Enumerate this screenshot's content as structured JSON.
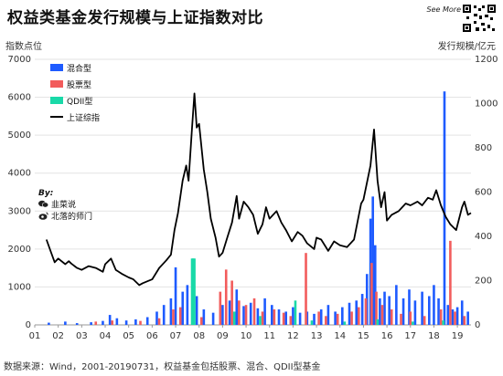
{
  "title": "权益类基金发行规模与上证指数对比",
  "left_axis_unit": "指数点位",
  "right_axis_unit": "发行规模/亿元",
  "source_note": "数据来源：Wind，2001-20190731，权益基金包括股票、混合、QDII型基金",
  "see_more": "See More",
  "byline": {
    "by": "By:",
    "wechat_name": "韭菜说",
    "weibo_name": "北落的师门"
  },
  "colors": {
    "hybrid": "#1e5bff",
    "stock": "#f25c5c",
    "qdii": "#19d9a8",
    "index": "#000000"
  },
  "chart_data": {
    "type": "bar",
    "title": "权益类基金发行规模与上证指数对比",
    "ylabel_left": "指数点位",
    "ylabel_right": "发行规模/亿元",
    "ylim_left": [
      0,
      7000
    ],
    "ylim_right": [
      0,
      1200
    ],
    "y_ticks_left": [
      "0",
      "1000",
      "2000",
      "3000",
      "4000",
      "5000",
      "6000",
      "7000"
    ],
    "y_ticks_right": [
      "0",
      "200",
      "400",
      "600",
      "800",
      "1000",
      "1200"
    ],
    "x_ticks": [
      "01",
      "02",
      "03",
      "04",
      "05",
      "06",
      "07",
      "08",
      "09",
      "10",
      "11",
      "12",
      "13",
      "14",
      "15",
      "16",
      "17",
      "18",
      "19"
    ],
    "x_range": [
      2001.0,
      2019.58
    ],
    "legend": [
      "混合型",
      "股票型",
      "QDII型",
      "上证综指"
    ],
    "legend_position": "top-left",
    "grid": "horizontal",
    "series": [
      {
        "name": "上证综指",
        "kind": "line",
        "axis": "left",
        "points": [
          [
            2001.5,
            2250
          ],
          [
            2001.7,
            1900
          ],
          [
            2001.85,
            1650
          ],
          [
            2002.0,
            1750
          ],
          [
            2002.3,
            1600
          ],
          [
            2002.45,
            1680
          ],
          [
            2002.55,
            1620
          ],
          [
            2002.8,
            1500
          ],
          [
            2003.0,
            1450
          ],
          [
            2003.3,
            1550
          ],
          [
            2003.6,
            1500
          ],
          [
            2003.9,
            1400
          ],
          [
            2004.0,
            1600
          ],
          [
            2004.25,
            1750
          ],
          [
            2004.45,
            1450
          ],
          [
            2004.7,
            1350
          ],
          [
            2005.0,
            1250
          ],
          [
            2005.2,
            1200
          ],
          [
            2005.45,
            1050
          ],
          [
            2005.6,
            1100
          ],
          [
            2005.8,
            1150
          ],
          [
            2006.0,
            1200
          ],
          [
            2006.3,
            1500
          ],
          [
            2006.6,
            1700
          ],
          [
            2006.8,
            1850
          ],
          [
            2006.95,
            2500
          ],
          [
            2007.1,
            2950
          ],
          [
            2007.3,
            3800
          ],
          [
            2007.45,
            4200
          ],
          [
            2007.55,
            3800
          ],
          [
            2007.7,
            5200
          ],
          [
            2007.8,
            6100
          ],
          [
            2007.9,
            5200
          ],
          [
            2008.0,
            5300
          ],
          [
            2008.2,
            4100
          ],
          [
            2008.35,
            3500
          ],
          [
            2008.5,
            2800
          ],
          [
            2008.7,
            2300
          ],
          [
            2008.85,
            1800
          ],
          [
            2009.0,
            1900
          ],
          [
            2009.2,
            2300
          ],
          [
            2009.4,
            2700
          ],
          [
            2009.6,
            3400
          ],
          [
            2009.7,
            2800
          ],
          [
            2009.9,
            3250
          ],
          [
            2010.1,
            3100
          ],
          [
            2010.3,
            2900
          ],
          [
            2010.5,
            2400
          ],
          [
            2010.7,
            2650
          ],
          [
            2010.85,
            3100
          ],
          [
            2011.0,
            2800
          ],
          [
            2011.3,
            3000
          ],
          [
            2011.5,
            2700
          ],
          [
            2011.7,
            2500
          ],
          [
            2011.95,
            2200
          ],
          [
            2012.2,
            2450
          ],
          [
            2012.4,
            2350
          ],
          [
            2012.6,
            2150
          ],
          [
            2012.9,
            2000
          ],
          [
            2013.0,
            2300
          ],
          [
            2013.2,
            2250
          ],
          [
            2013.5,
            1950
          ],
          [
            2013.75,
            2200
          ],
          [
            2014.0,
            2100
          ],
          [
            2014.3,
            2050
          ],
          [
            2014.6,
            2250
          ],
          [
            2014.9,
            3200
          ],
          [
            2015.0,
            3300
          ],
          [
            2015.3,
            4200
          ],
          [
            2015.45,
            5150
          ],
          [
            2015.6,
            3800
          ],
          [
            2015.75,
            3100
          ],
          [
            2015.9,
            3500
          ],
          [
            2016.0,
            2750
          ],
          [
            2016.2,
            2900
          ],
          [
            2016.5,
            3000
          ],
          [
            2016.8,
            3200
          ],
          [
            2017.0,
            3150
          ],
          [
            2017.3,
            3250
          ],
          [
            2017.5,
            3150
          ],
          [
            2017.75,
            3350
          ],
          [
            2017.95,
            3300
          ],
          [
            2018.1,
            3550
          ],
          [
            2018.3,
            3150
          ],
          [
            2018.5,
            2850
          ],
          [
            2018.7,
            2650
          ],
          [
            2018.95,
            2500
          ],
          [
            2019.2,
            3100
          ],
          [
            2019.3,
            3250
          ],
          [
            2019.45,
            2900
          ],
          [
            2019.58,
            2950
          ]
        ]
      },
      {
        "name": "混合型",
        "kind": "bar",
        "axis": "right",
        "points": [
          [
            2001.6,
            10
          ],
          [
            2002.3,
            15
          ],
          [
            2002.8,
            8
          ],
          [
            2003.4,
            12
          ],
          [
            2003.9,
            18
          ],
          [
            2004.2,
            45
          ],
          [
            2004.5,
            30
          ],
          [
            2004.9,
            20
          ],
          [
            2005.3,
            25
          ],
          [
            2005.8,
            35
          ],
          [
            2006.2,
            60
          ],
          [
            2006.5,
            90
          ],
          [
            2006.8,
            120
          ],
          [
            2007.0,
            260
          ],
          [
            2007.3,
            150
          ],
          [
            2007.5,
            180
          ],
          [
            2007.9,
            130
          ],
          [
            2008.2,
            70
          ],
          [
            2008.6,
            55
          ],
          [
            2009.0,
            90
          ],
          [
            2009.3,
            110
          ],
          [
            2009.6,
            160
          ],
          [
            2009.9,
            85
          ],
          [
            2010.2,
            100
          ],
          [
            2010.5,
            75
          ],
          [
            2010.8,
            120
          ],
          [
            2011.1,
            90
          ],
          [
            2011.4,
            70
          ],
          [
            2011.7,
            60
          ],
          [
            2012.0,
            80
          ],
          [
            2012.3,
            55
          ],
          [
            2012.6,
            60
          ],
          [
            2012.9,
            50
          ],
          [
            2013.2,
            70
          ],
          [
            2013.5,
            90
          ],
          [
            2013.8,
            60
          ],
          [
            2014.1,
            80
          ],
          [
            2014.4,
            100
          ],
          [
            2014.7,
            110
          ],
          [
            2014.95,
            140
          ],
          [
            2015.15,
            230
          ],
          [
            2015.3,
            480
          ],
          [
            2015.4,
            580
          ],
          [
            2015.5,
            360
          ],
          [
            2015.7,
            120
          ],
          [
            2015.9,
            150
          ],
          [
            2016.1,
            130
          ],
          [
            2016.4,
            180
          ],
          [
            2016.7,
            120
          ],
          [
            2016.95,
            160
          ],
          [
            2017.2,
            110
          ],
          [
            2017.5,
            150
          ],
          [
            2017.8,
            130
          ],
          [
            2018.0,
            180
          ],
          [
            2018.2,
            120
          ],
          [
            2018.45,
            1055
          ],
          [
            2018.6,
            90
          ],
          [
            2018.8,
            70
          ],
          [
            2019.0,
            80
          ],
          [
            2019.2,
            110
          ],
          [
            2019.45,
            60
          ]
        ]
      },
      {
        "name": "股票型",
        "kind": "bar",
        "axis": "right",
        "points": [
          [
            2003.6,
            15
          ],
          [
            2004.3,
            20
          ],
          [
            2005.5,
            18
          ],
          [
            2006.3,
            30
          ],
          [
            2006.9,
            70
          ],
          [
            2007.2,
            80
          ],
          [
            2008.1,
            35
          ],
          [
            2008.9,
            150
          ],
          [
            2009.15,
            250
          ],
          [
            2009.4,
            200
          ],
          [
            2009.7,
            110
          ],
          [
            2010.0,
            90
          ],
          [
            2010.35,
            120
          ],
          [
            2010.7,
            60
          ],
          [
            2011.2,
            70
          ],
          [
            2011.6,
            55
          ],
          [
            2011.9,
            40
          ],
          [
            2012.55,
            325
          ],
          [
            2013.1,
            60
          ],
          [
            2013.4,
            40
          ],
          [
            2013.9,
            50
          ],
          [
            2014.5,
            60
          ],
          [
            2014.8,
            80
          ],
          [
            2015.1,
            120
          ],
          [
            2015.35,
            280
          ],
          [
            2015.55,
            150
          ],
          [
            2015.8,
            90
          ],
          [
            2016.2,
            70
          ],
          [
            2016.6,
            50
          ],
          [
            2017.0,
            60
          ],
          [
            2017.6,
            40
          ],
          [
            2018.3,
            70
          ],
          [
            2018.7,
            380
          ],
          [
            2018.9,
            60
          ],
          [
            2019.3,
            40
          ]
        ]
      },
      {
        "name": "QDII型",
        "kind": "bar",
        "axis": "right",
        "points": [
          [
            2007.7,
            300
          ],
          [
            2007.75,
            300
          ],
          [
            2007.8,
            300
          ],
          [
            2009.5,
            60
          ],
          [
            2010.6,
            40
          ],
          [
            2012.1,
            110
          ],
          [
            2012.8,
            20
          ],
          [
            2014.2,
            15
          ],
          [
            2015.6,
            25
          ],
          [
            2017.1,
            15
          ],
          [
            2018.4,
            20
          ]
        ]
      }
    ]
  }
}
